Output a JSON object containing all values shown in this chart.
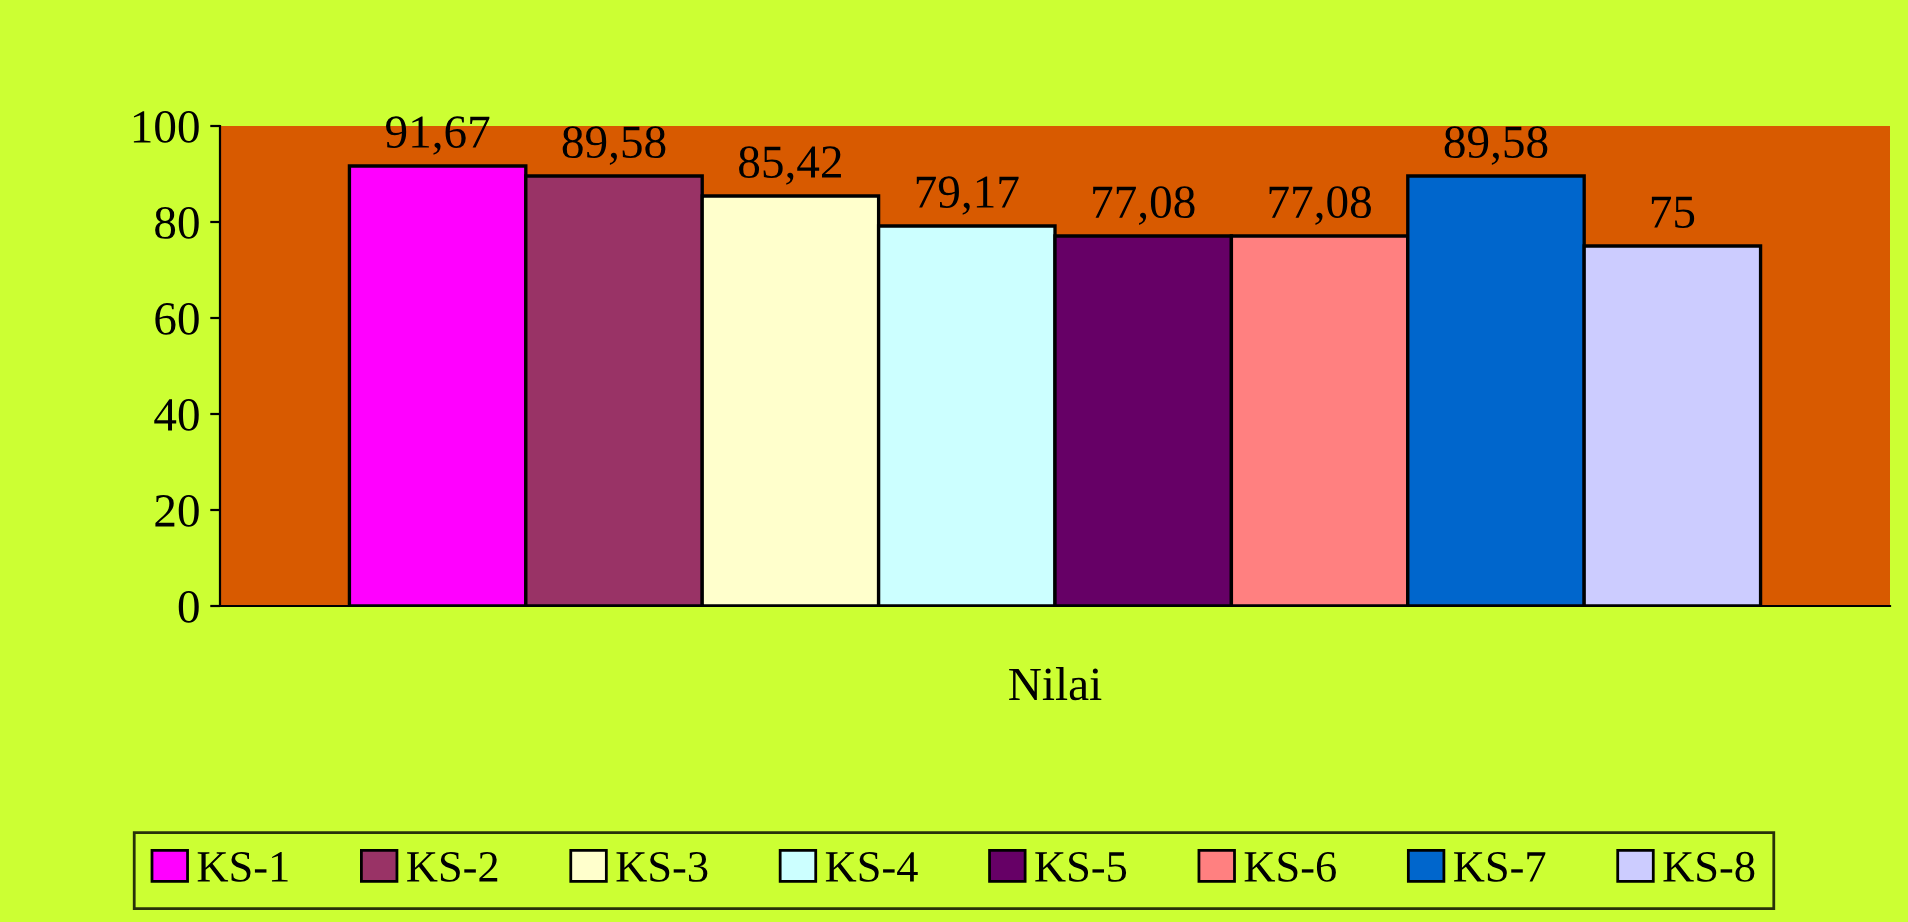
{
  "chart_data": {
    "type": "bar",
    "categories": [
      "Nilai"
    ],
    "series": [
      {
        "name": "KS-1",
        "color": "#ff00ff",
        "values": [
          91.67
        ],
        "value_labels": [
          "91,67"
        ]
      },
      {
        "name": "KS-2",
        "color": "#993366",
        "values": [
          89.58
        ],
        "value_labels": [
          "89,58"
        ]
      },
      {
        "name": "KS-3",
        "color": "#ffffcc",
        "values": [
          85.42
        ],
        "value_labels": [
          "85,42"
        ]
      },
      {
        "name": "KS-4",
        "color": "#ccffff",
        "values": [
          79.17
        ],
        "value_labels": [
          "79,17"
        ]
      },
      {
        "name": "KS-5",
        "color": "#660066",
        "values": [
          77.08
        ],
        "value_labels": [
          "77,08"
        ]
      },
      {
        "name": "KS-6",
        "color": "#ff8080",
        "values": [
          77.08
        ],
        "value_labels": [
          "77,08"
        ]
      },
      {
        "name": "KS-7",
        "color": "#0066cc",
        "values": [
          89.58
        ],
        "value_labels": [
          "89,58"
        ]
      },
      {
        "name": "KS-8",
        "color": "#ccccff",
        "values": [
          75
        ],
        "value_labels": [
          "75"
        ]
      }
    ],
    "ylim": [
      0,
      100
    ],
    "yticks": [
      0,
      20,
      40,
      60,
      80,
      100
    ],
    "grid": false,
    "legend": "bottom"
  }
}
